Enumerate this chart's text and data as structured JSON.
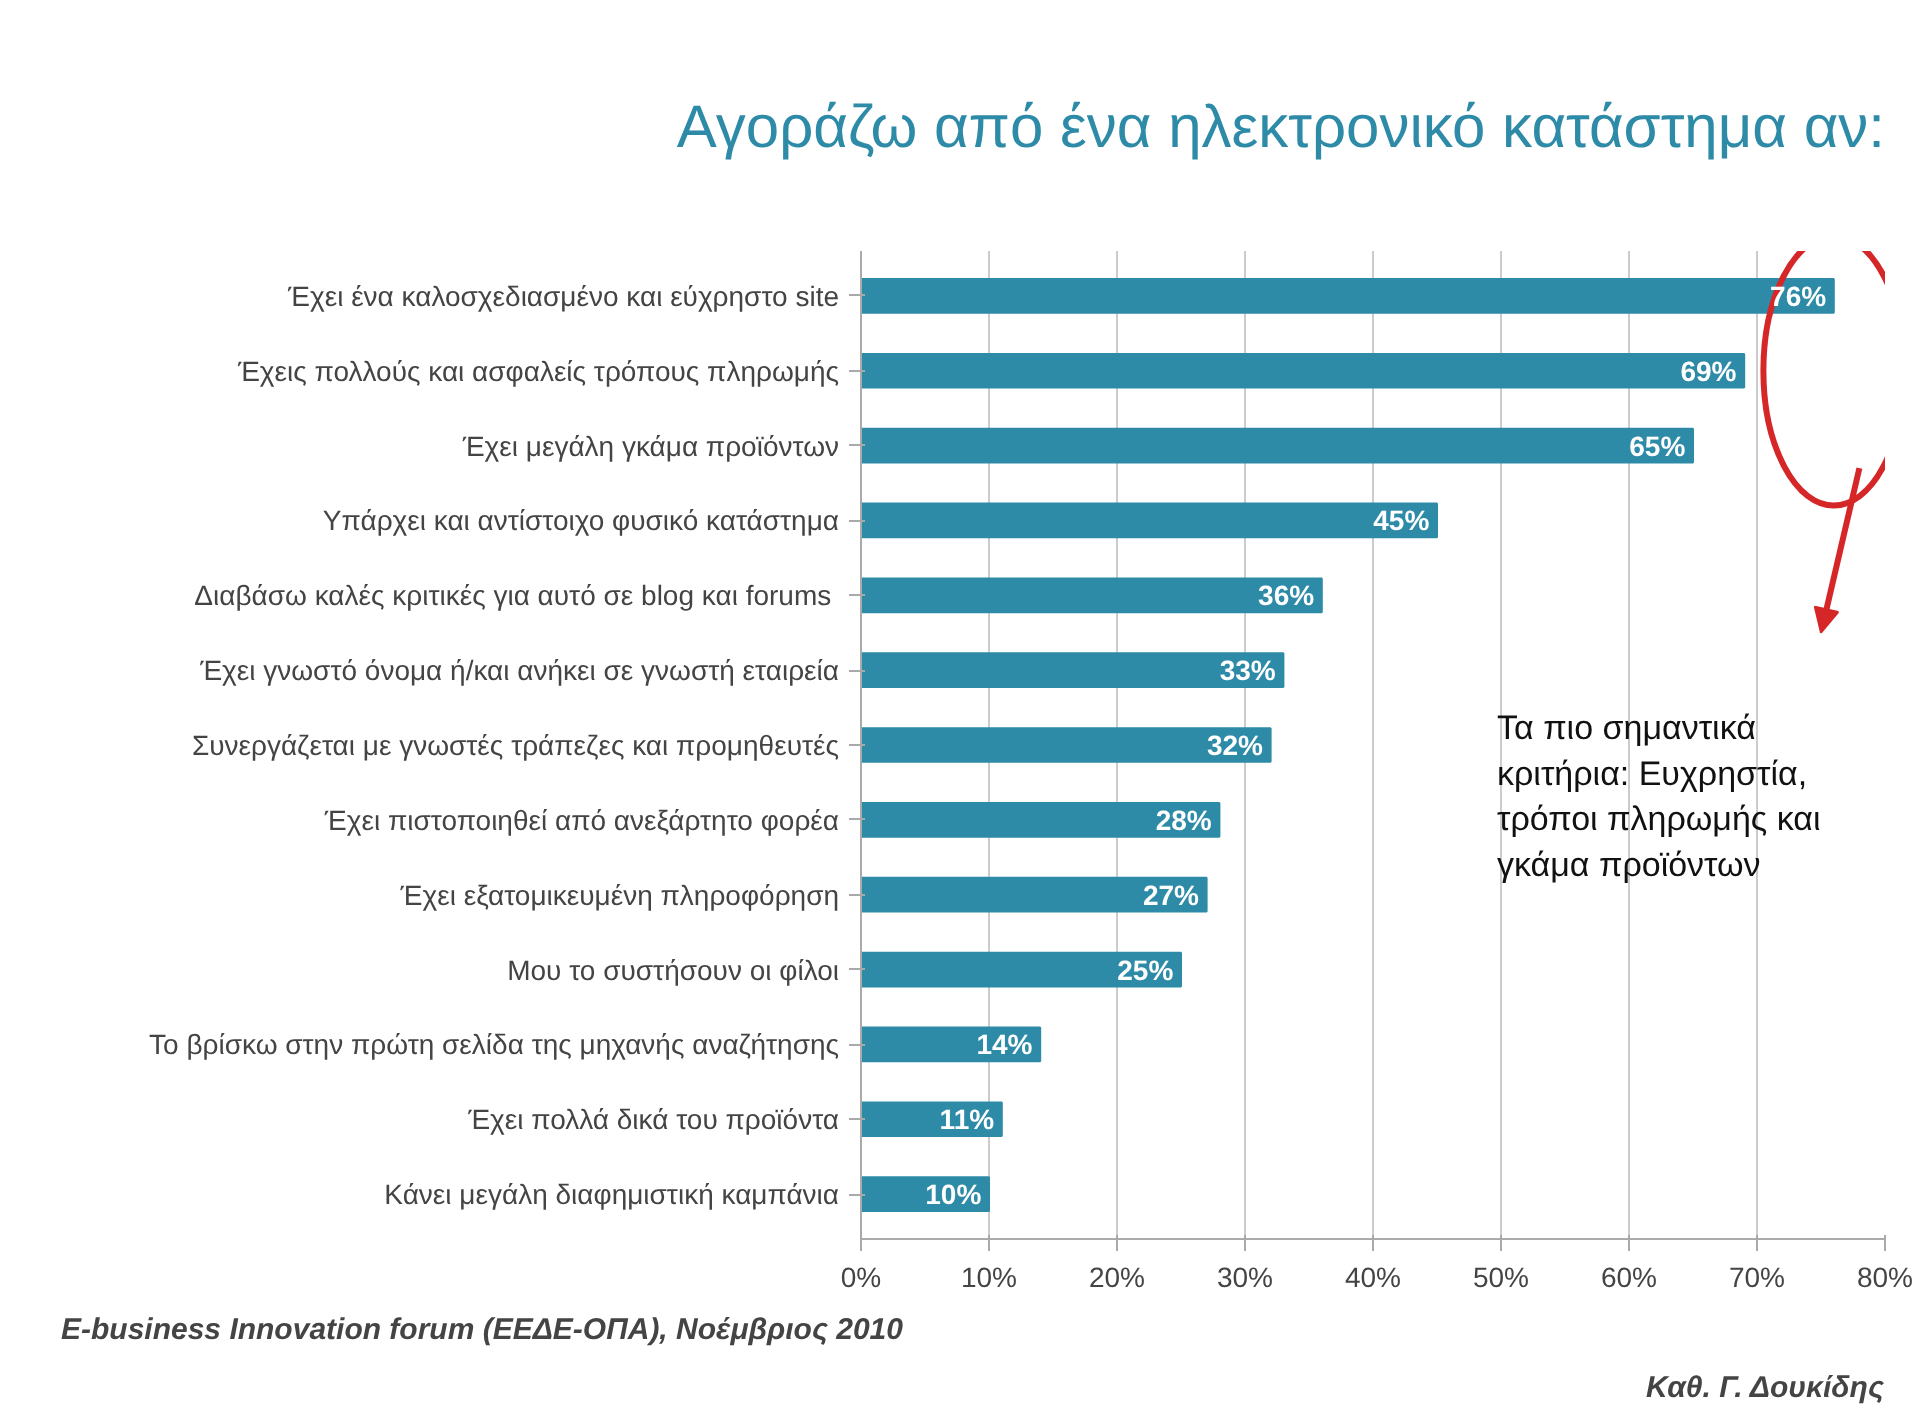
{
  "chart_data": {
    "type": "bar",
    "orientation": "horizontal",
    "title": "Αγοράζω από ένα ηλεκτρονικό κατάστημα αν:",
    "categories": [
      "Έχει ένα καλοσχεδιασμένο και εύχρηστο site",
      "Έχεις πολλούς και ασφαλείς τρόπους πληρωμής",
      "Έχει μεγάλη γκάμα προϊόντων",
      "Υπάρχει και αντίστοιχο φυσικό κατάστημα",
      "Διαβάσω καλές κριτικές  για αυτό σε blog και forums",
      "Έχει γνωστό όνομα ή/και ανήκει σε γνωστή εταιρεία",
      "Συνεργάζεται με γνωστές τράπεζες και προμηθευτές",
      "Έχει πιστοποιηθεί από ανεξάρτητο φορέα",
      "Έχει εξατομικευμένη πληροφόρηση",
      "Μου το συστήσουν οι φίλοι",
      "Το βρίσκω στην πρώτη σελίδα της μηχανής αναζήτησης",
      "Έχει πολλά δικά του προϊόντα",
      "Κάνει μεγάλη διαφημιστική καμπάνια"
    ],
    "values": [
      76,
      69,
      65,
      45,
      36,
      33,
      32,
      28,
      27,
      25,
      14,
      11,
      10
    ],
    "value_labels": [
      "76%",
      "69%",
      "65%",
      "45%",
      "36%",
      "33%",
      "32%",
      "28%",
      "27%",
      "25%",
      "14%",
      "11%",
      "10%"
    ],
    "color": "#2e8ba8",
    "xlim": [
      0,
      80
    ],
    "xticks": [
      {
        "value": 0,
        "label": "0%"
      },
      {
        "value": 10,
        "label": "10%"
      },
      {
        "value": 20,
        "label": "20%"
      },
      {
        "value": 30,
        "label": "30%"
      },
      {
        "value": 40,
        "label": "40%"
      },
      {
        "value": 50,
        "label": "50%"
      },
      {
        "value": 60,
        "label": "60%"
      },
      {
        "value": 70,
        "label": "70%"
      },
      {
        "value": 80,
        "label": "80%"
      }
    ],
    "grid": "x",
    "annotations": [
      "Τα πιο σημαντικά κριτήρια: Ευχρηστία, τρόποι πληρωμής και γκάμα προϊόντων",
      "E-business Innovation forum (ΕΕΔΕ-ΟΠΑ), Νοέμβριος 2010",
      "Καθ. Γ. Δουκίδης"
    ]
  }
}
